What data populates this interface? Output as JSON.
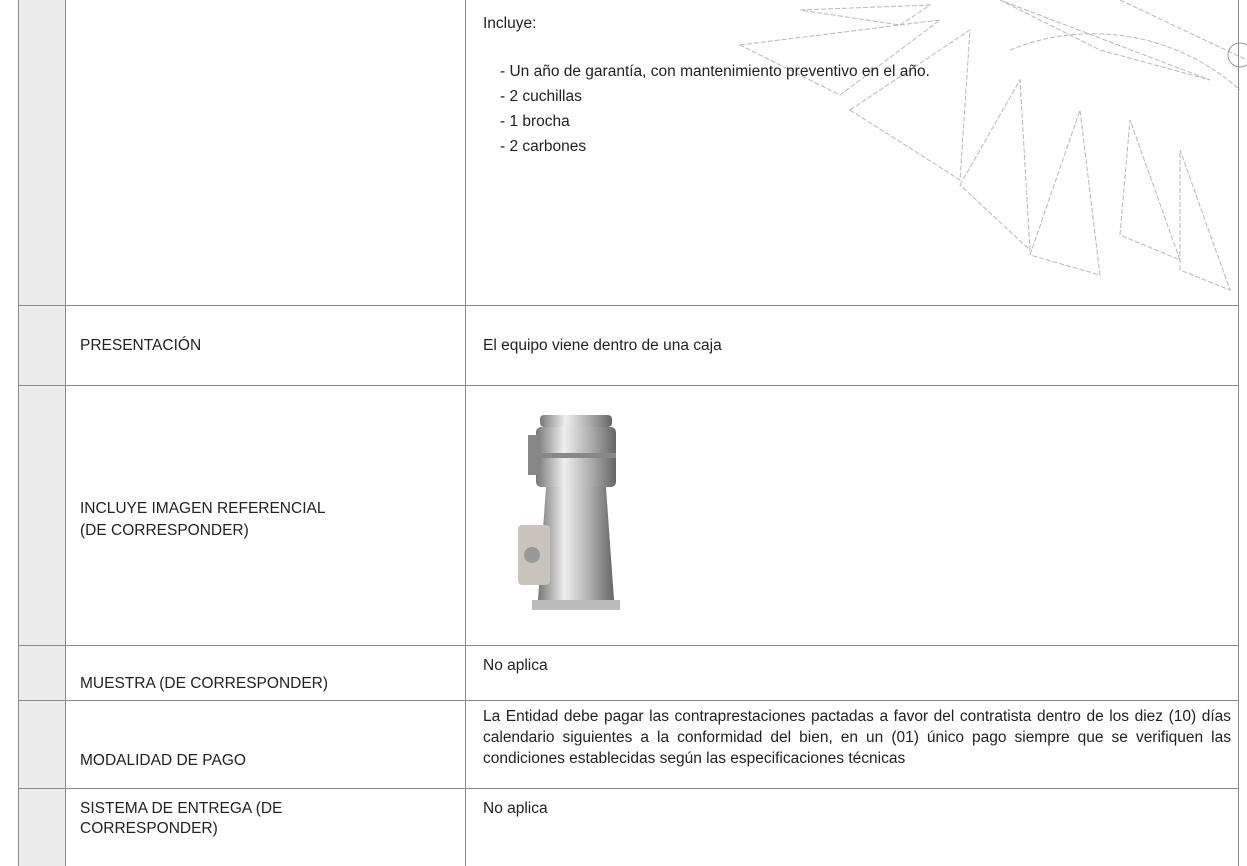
{
  "table": {
    "rows": [
      {
        "value": {
          "heading": "Incluye:",
          "items": [
            "- Un año de garantía, con mantenimiento preventivo en el año.",
            "-  2 cuchillas",
            "- 1 brocha",
            "- 2 carbones"
          ]
        }
      },
      {
        "label": [
          "PRESENTACIÓN"
        ],
        "value": "El equipo viene dentro de una caja"
      },
      {
        "label": [
          "INCLUYE IMAGEN REFERENCIAL",
          "(DE CORRESPONDER)"
        ]
      },
      {
        "label": [
          "MUESTRA (DE CORRESPONDER)"
        ],
        "value": "No aplica"
      },
      {
        "label": [
          "MODALIDAD DE PAGO"
        ],
        "value": "La Entidad debe pagar las contraprestaciones pactadas a favor del contratista dentro de los diez (10) días calendario siguientes a la conformidad del bien, en un (01) único pago siempre que se verifiquen las condiciones establecidas según las especificaciones técnicas"
      },
      {
        "label": [
          "SISTEMA DE ENTREGA (DE",
          "CORRESPONDER)"
        ],
        "value": "No aplica"
      }
    ]
  }
}
